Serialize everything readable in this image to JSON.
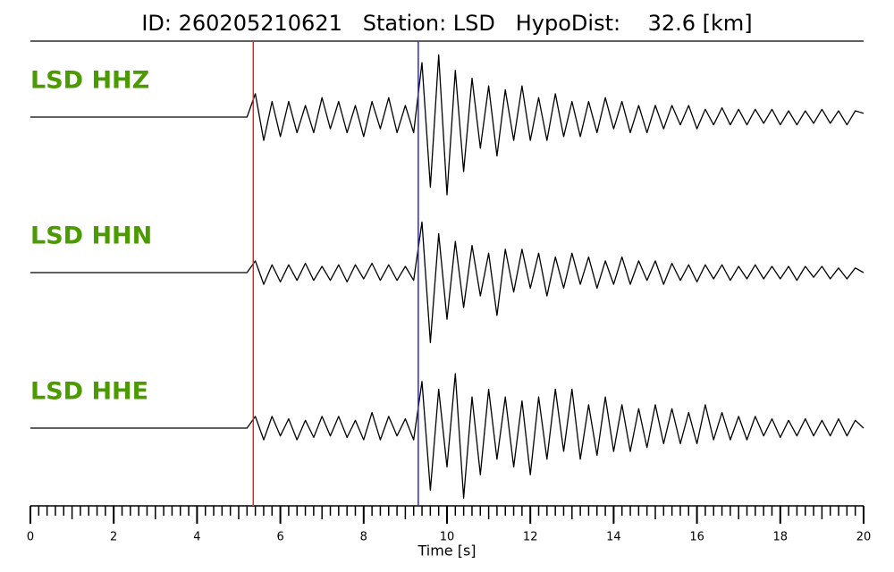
{
  "chart_data": {
    "type": "seismogram",
    "title": "ID: 260205210621   Station: LSD   HypoDist:    32.6 [km]",
    "xlabel": "Time [s]",
    "xlim": [
      0,
      20
    ],
    "xticks": [
      0,
      2,
      4,
      6,
      8,
      10,
      12,
      14,
      16,
      18,
      20
    ],
    "xminor_step": 0.2,
    "ylim": [
      -10,
      10
    ],
    "vlines": [
      {
        "x": 5.35,
        "color": "#e8231e"
      },
      {
        "x": 9.31,
        "color": "#2a2ad0"
      }
    ],
    "x": [
      0,
      0.2,
      0.4,
      0.6,
      0.8,
      1,
      1.2,
      1.4,
      1.6,
      1.8,
      2,
      2.2,
      2.4,
      2.6,
      2.8,
      3,
      3.2,
      3.4,
      3.6,
      3.8,
      4,
      4.2,
      4.4,
      4.6,
      4.8,
      5,
      5.2,
      5.4,
      5.6,
      5.8,
      6,
      6.2,
      6.4,
      6.6,
      6.8,
      7,
      7.2,
      7.4,
      7.6,
      7.8,
      8,
      8.2,
      8.4,
      8.6,
      8.8,
      9,
      9.2,
      9.4,
      9.6,
      9.8,
      10,
      10.2,
      10.4,
      10.6,
      10.8,
      11,
      11.2,
      11.4,
      11.6,
      11.8,
      12,
      12.2,
      12.4,
      12.6,
      12.8,
      13,
      13.2,
      13.4,
      13.6,
      13.8,
      14,
      14.2,
      14.4,
      14.6,
      14.8,
      15,
      15.2,
      15.4,
      15.6,
      15.8,
      16,
      16.2,
      16.4,
      16.6,
      16.8,
      17,
      17.2,
      17.4,
      17.6,
      17.8,
      18,
      18.2,
      18.4,
      18.6,
      18.8,
      19,
      19.2,
      19.4,
      19.6,
      19.8,
      20
    ],
    "series": [
      {
        "name": "LSD HHZ",
        "color": "#000000",
        "values": [
          0,
          0,
          0,
          0,
          0,
          0,
          0,
          0,
          0,
          0,
          0,
          0,
          0,
          0,
          0,
          0,
          0,
          0,
          0,
          0,
          0,
          0,
          0,
          0,
          0,
          0,
          0,
          3,
          -3,
          2,
          -2.5,
          2,
          -2,
          1.5,
          -2,
          2.5,
          -1.5,
          2,
          -2,
          1.5,
          -2.5,
          2,
          -1.5,
          2.5,
          -2,
          1.5,
          -2,
          7,
          -9,
          8,
          -10,
          6,
          -7,
          5,
          -4,
          4,
          -5,
          3.5,
          -3,
          4,
          -3,
          2.5,
          -3,
          3,
          -2.5,
          2,
          -2.5,
          2,
          -2,
          2.5,
          -1.5,
          2,
          -2,
          1.5,
          -2,
          1.5,
          -1.5,
          1.5,
          -1,
          1.5,
          -1.5,
          1,
          -1,
          1.2,
          -1,
          1,
          -1,
          1,
          -0.8,
          1,
          -1,
          0.8,
          -1,
          0.8,
          -0.8,
          1,
          -0.8,
          0.8,
          -1,
          0.8,
          0.5
        ]
      },
      {
        "name": "LSD HHN",
        "color": "#000000",
        "values": [
          0,
          0,
          0,
          0,
          0,
          0,
          0,
          0,
          0,
          0,
          0,
          0,
          0,
          0,
          0,
          0,
          0,
          0,
          0,
          0,
          0,
          0,
          0,
          0,
          0,
          0,
          0,
          1.5,
          -1.5,
          1,
          -1.2,
          1,
          -1,
          1.2,
          -1,
          0.8,
          -1,
          1,
          -1.2,
          1,
          -0.8,
          1.2,
          -1,
          1,
          -1,
          0.8,
          -1,
          6.5,
          -9,
          5,
          -6,
          4,
          -4.5,
          3.5,
          -3,
          2.5,
          -5.5,
          3,
          -2.5,
          3,
          -2,
          2.5,
          -3,
          2,
          -2,
          2.5,
          -1.5,
          2,
          -2,
          1.5,
          -1.5,
          2,
          -1.5,
          1.5,
          -1,
          1.5,
          -1.5,
          1.2,
          -1,
          1,
          -1.2,
          1,
          -0.8,
          1,
          -1,
          0.8,
          -0.8,
          1,
          -0.8,
          0.8,
          -0.8,
          0.8,
          -1,
          0.8,
          -0.6,
          0.8,
          -0.8,
          0.6,
          -0.8,
          0.6,
          0
        ]
      },
      {
        "name": "LSD HHE",
        "color": "#000000",
        "values": [
          0,
          0,
          0,
          0,
          0,
          0,
          0,
          0,
          0,
          0,
          0,
          0,
          0,
          0,
          0,
          0,
          0,
          0,
          0,
          0,
          0,
          0,
          0,
          0,
          0,
          0,
          0,
          1.5,
          -1.5,
          1.5,
          -1,
          1.2,
          -1.5,
          1,
          -1.2,
          1.5,
          -1,
          1.5,
          -1.2,
          1,
          -1.5,
          2,
          -1.5,
          1.5,
          -1,
          1.2,
          -1.5,
          6,
          -8,
          5,
          -5,
          7,
          -9,
          4,
          -6,
          5,
          -4,
          4,
          -5,
          3.5,
          -6,
          4,
          -4,
          5,
          -3,
          5,
          -4,
          3,
          -3.5,
          4,
          -3,
          3,
          -3,
          2.5,
          -2.5,
          3,
          -2,
          2.5,
          -2,
          2,
          -2,
          3,
          -1.5,
          2,
          -1.5,
          1.5,
          -1.5,
          1.5,
          -1,
          1.2,
          -1.2,
          1,
          -1,
          1.2,
          -1,
          1,
          -1,
          1.2,
          -1,
          1,
          0
        ]
      }
    ],
    "label_color": "#4a9a00"
  }
}
